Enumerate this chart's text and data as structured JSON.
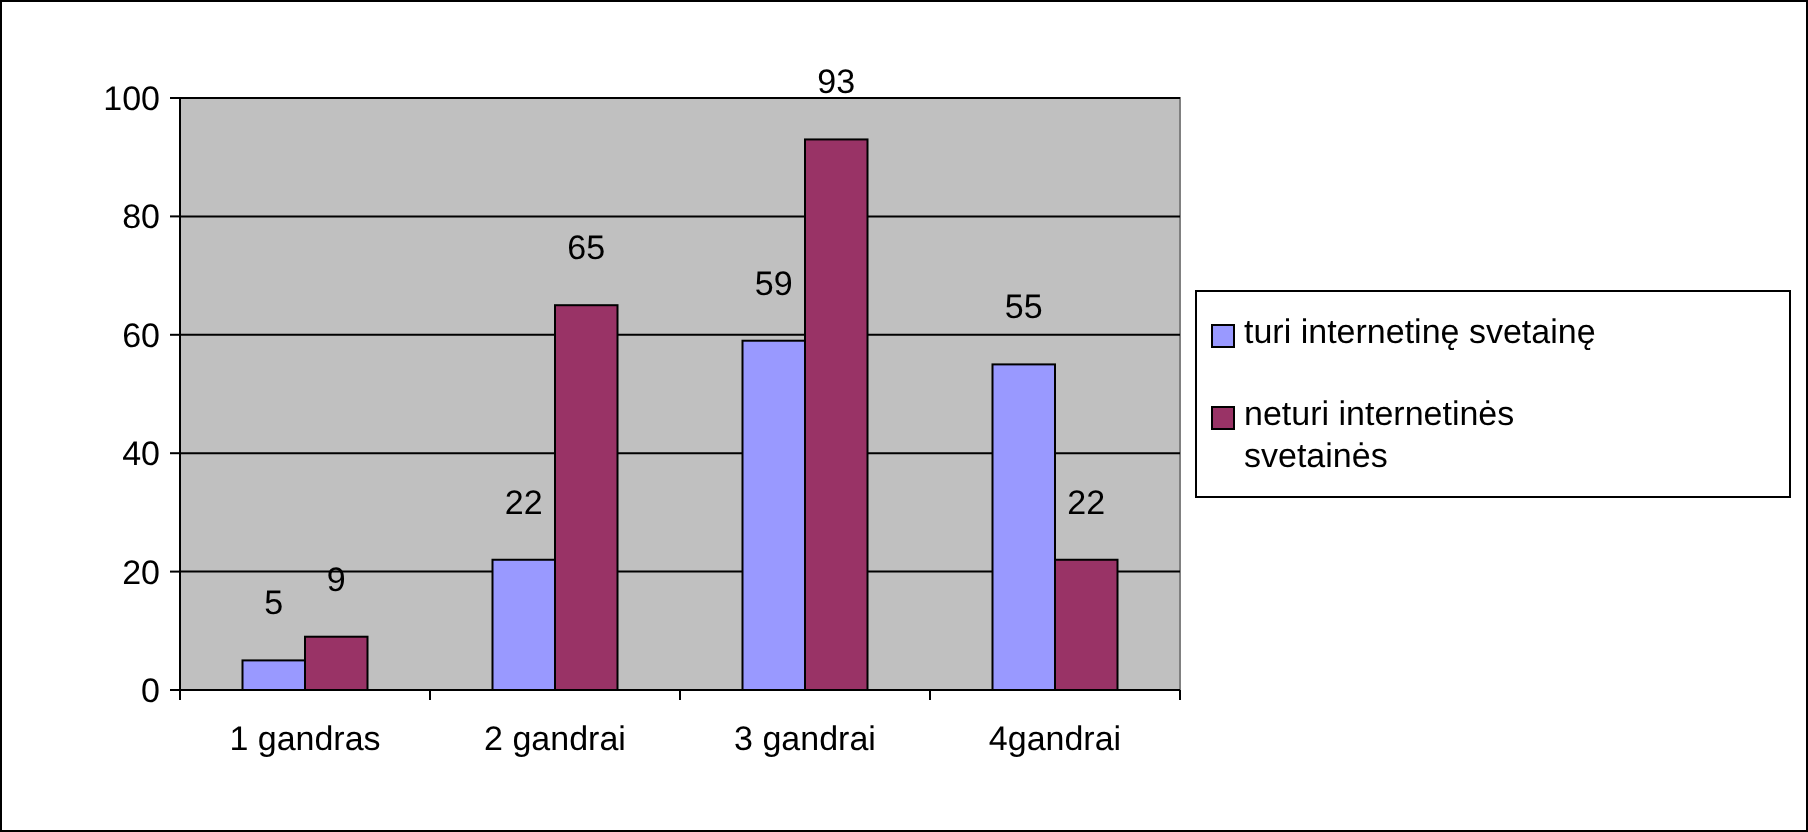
{
  "chart_data": {
    "type": "bar",
    "categories": [
      "1 gandras",
      "2 gandrai",
      "3 gandrai",
      "4gandrai"
    ],
    "series": [
      {
        "name": "turi internetinę svetainę",
        "color": "#9999ff",
        "values": [
          5,
          22,
          59,
          55
        ]
      },
      {
        "name": "neturi internetinės svetainės",
        "color": "#993366",
        "values": [
          9,
          65,
          93,
          22
        ]
      }
    ],
    "ylim": [
      0,
      100
    ],
    "yticks": [
      0,
      20,
      40,
      60,
      80,
      100
    ],
    "grid": "y",
    "legend": "right",
    "data_labels": true
  }
}
